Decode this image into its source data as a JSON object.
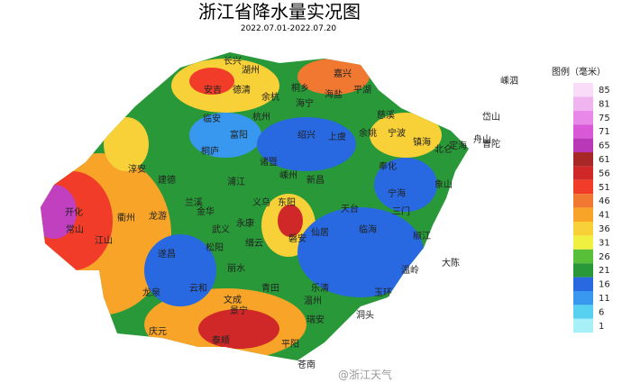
{
  "title": "浙江省降水量实况图",
  "subtitle": "2022.07.01-2022.07.20",
  "legend": {
    "title": "图例（毫米）",
    "items": [
      {
        "value": 85,
        "color": "#f8dcf8"
      },
      {
        "value": 81,
        "color": "#f0b4f0"
      },
      {
        "value": 75,
        "color": "#e888e8"
      },
      {
        "value": 71,
        "color": "#d858d8"
      },
      {
        "value": 65,
        "color": "#b838b8"
      },
      {
        "value": 61,
        "color": "#a82828"
      },
      {
        "value": 56,
        "color": "#d02828"
      },
      {
        "value": 51,
        "color": "#f03c28"
      },
      {
        "value": 46,
        "color": "#f07830"
      },
      {
        "value": 41,
        "color": "#f8a428"
      },
      {
        "value": 36,
        "color": "#f8d038"
      },
      {
        "value": 31,
        "color": "#f0f040"
      },
      {
        "value": 26,
        "color": "#58c038"
      },
      {
        "value": 21,
        "color": "#289838"
      },
      {
        "value": 16,
        "color": "#2868e0"
      },
      {
        "value": 11,
        "color": "#3898f0"
      },
      {
        "value": 6,
        "color": "#58d0f0"
      },
      {
        "value": 1,
        "color": "#a8f0f8"
      }
    ]
  },
  "places": [
    "长兴",
    "湖州",
    "嘉兴",
    "平湖",
    "海盐",
    "桐乡",
    "海宁",
    "德清",
    "安吉",
    "余杭",
    "杭州",
    "临安",
    "富阳",
    "桐庐",
    "淳安",
    "建德",
    "开化",
    "常山",
    "江山",
    "衢州",
    "龙游",
    "兰溪",
    "金华",
    "浦江",
    "诸暨",
    "绍兴",
    "上虞",
    "余姚",
    "慈溪",
    "宁波",
    "镇海",
    "北仑",
    "奉化",
    "宁海",
    "象山",
    "嵊州",
    "新昌",
    "天台",
    "三门",
    "临海",
    "仙居",
    "椒江",
    "温岭",
    "玉环",
    "乐清",
    "温州",
    "瑞安",
    "平阳",
    "苍南",
    "文成",
    "泰顺",
    "庆元",
    "龙泉",
    "遂昌",
    "松阳",
    "云和",
    "景宁",
    "丽水",
    "缙云",
    "永康",
    "武义",
    "东阳",
    "义乌",
    "磐安",
    "青田",
    "洞头",
    "大陈",
    "舟山",
    "岱山",
    "嵊泗",
    "定海",
    "普陀"
  ],
  "watermark": "@浙江天气"
}
